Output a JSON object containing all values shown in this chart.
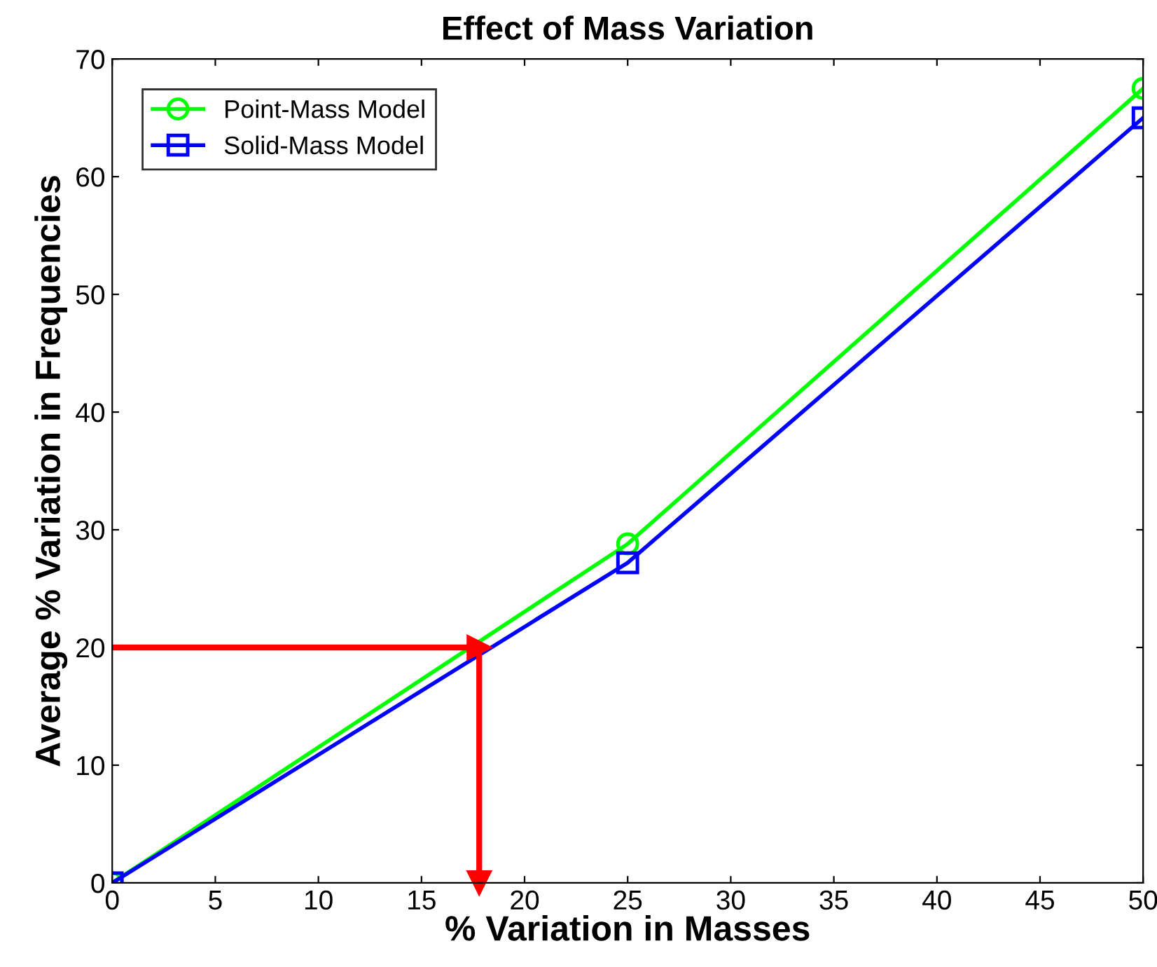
{
  "chart_data": {
    "type": "line",
    "title": "Effect of Mass Variation",
    "xlabel": "% Variation in Masses",
    "ylabel": "Average % Variation in Frequencies",
    "x": [
      0,
      25,
      50
    ],
    "series": [
      {
        "name": "Point-Mass Model",
        "color": "#00ff00",
        "marker": "circle",
        "values": [
          0,
          28.8,
          67.5
        ]
      },
      {
        "name": "Solid-Mass Model",
        "color": "#0000ff",
        "marker": "square",
        "values": [
          0,
          27.2,
          65
        ]
      }
    ],
    "xlim": [
      0,
      50
    ],
    "xticks": [
      0,
      5,
      10,
      15,
      20,
      25,
      30,
      35,
      40,
      45,
      50
    ],
    "ylim": [
      0,
      70
    ],
    "yticks": [
      0,
      10,
      20,
      30,
      40,
      50,
      60,
      70
    ],
    "ref_lines": [
      {
        "axis": "y",
        "value": 20,
        "color": "#ff0000"
      },
      {
        "axis": "x",
        "value": 17.8,
        "color": "#ff0000"
      }
    ],
    "grid": false,
    "legend": "top left",
    "line_style": "solid"
  }
}
